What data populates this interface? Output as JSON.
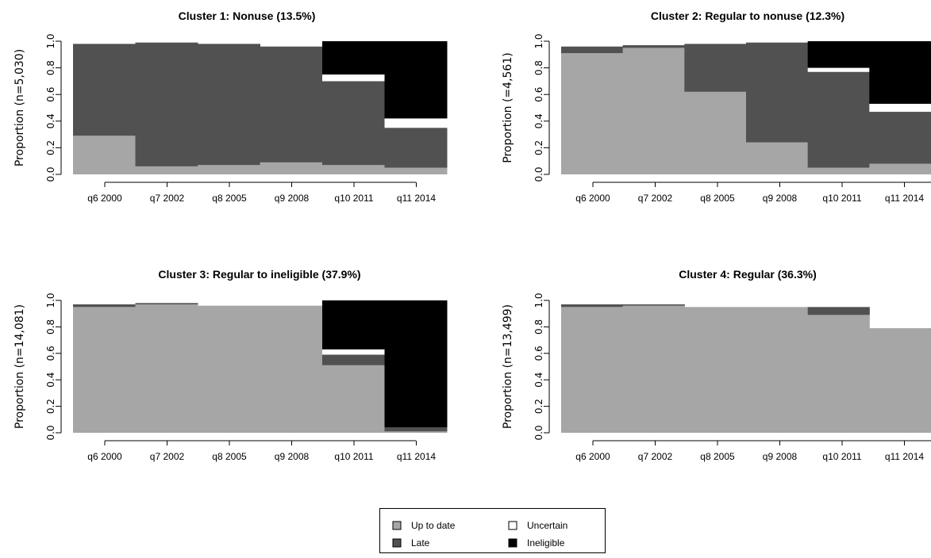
{
  "colors": {
    "Up to date": "#a6a6a6",
    "Late": "#515151",
    "Uncertain": "#ffffff",
    "Ineligible": "#000000"
  },
  "legend": {
    "placement": "bottom-center",
    "entries": [
      "Up to date",
      "Uncertain",
      "Late",
      "Ineligible"
    ]
  },
  "chart_data": [
    {
      "type": "bar",
      "stacked": true,
      "title": "Cluster 1: Nonuse (13.5%)",
      "ylabel": "Proportion (n=5,030)",
      "ylim": [
        0,
        1
      ],
      "yticks": [
        "0.0",
        "0.2",
        "0.4",
        "0.6",
        "0.8",
        "1.0"
      ],
      "categories": [
        "q6 2000",
        "q7 2002",
        "q8 2005",
        "q9 2008",
        "q10 2011",
        "q11 2014"
      ],
      "series": [
        {
          "name": "Up to date",
          "values": [
            0.29,
            0.06,
            0.07,
            0.09,
            0.07,
            0.05
          ]
        },
        {
          "name": "Late",
          "values": [
            0.69,
            0.93,
            0.91,
            0.87,
            0.63,
            0.3
          ]
        },
        {
          "name": "Uncertain",
          "values": [
            0,
            0,
            0,
            0,
            0.05,
            0.07
          ]
        },
        {
          "name": "Ineligible",
          "values": [
            0,
            0,
            0,
            0,
            0.25,
            0.58
          ]
        }
      ]
    },
    {
      "type": "bar",
      "stacked": true,
      "title": "Cluster 2: Regular to nonuse (12.3%)",
      "ylabel": "Proportion (=4,561)",
      "ylim": [
        0,
        1
      ],
      "yticks": [
        "0.0",
        "0.2",
        "0.4",
        "0.6",
        "0.8",
        "1.0"
      ],
      "categories": [
        "q6 2000",
        "q7 2002",
        "q8 2005",
        "q9 2008",
        "q10 2011",
        "q11 2014"
      ],
      "series": [
        {
          "name": "Up to date",
          "values": [
            0.91,
            0.95,
            0.62,
            0.24,
            0.05,
            0.08
          ]
        },
        {
          "name": "Late",
          "values": [
            0.05,
            0.02,
            0.36,
            0.75,
            0.72,
            0.39
          ]
        },
        {
          "name": "Uncertain",
          "values": [
            0,
            0,
            0,
            0,
            0.03,
            0.06
          ]
        },
        {
          "name": "Ineligible",
          "values": [
            0,
            0,
            0,
            0,
            0.2,
            0.47
          ]
        }
      ]
    },
    {
      "type": "bar",
      "stacked": true,
      "title": "Cluster 3: Regular to ineligible (37.9%)",
      "ylabel": "Proportion (n=14,081)",
      "ylim": [
        0,
        1
      ],
      "yticks": [
        "0.0",
        "0.2",
        "0.4",
        "0.6",
        "0.8",
        "1.0"
      ],
      "categories": [
        "q6 2000",
        "q7 2002",
        "q8 2005",
        "q9 2008",
        "q10 2011",
        "q11 2014"
      ],
      "series": [
        {
          "name": "Up to date",
          "values": [
            0.95,
            0.97,
            0.96,
            0.96,
            0.51,
            0.01
          ]
        },
        {
          "name": "Late",
          "values": [
            0.02,
            0.01,
            0.0,
            0.0,
            0.08,
            0.03
          ]
        },
        {
          "name": "Uncertain",
          "values": [
            0,
            0,
            0,
            0,
            0.04,
            0.0
          ]
        },
        {
          "name": "Ineligible",
          "values": [
            0,
            0,
            0,
            0,
            0.37,
            0.96
          ]
        }
      ]
    },
    {
      "type": "bar",
      "stacked": true,
      "title": "Cluster 4: Regular (36.3%)",
      "ylabel": "Proportion (n=13,499)",
      "ylim": [
        0,
        1
      ],
      "yticks": [
        "0.0",
        "0.2",
        "0.4",
        "0.6",
        "0.8",
        "1.0"
      ],
      "categories": [
        "q6 2000",
        "q7 2002",
        "q8 2005",
        "q9 2008",
        "q10 2011",
        "q11 2014"
      ],
      "series": [
        {
          "name": "Up to date",
          "values": [
            0.95,
            0.96,
            0.95,
            0.95,
            0.89,
            0.79
          ]
        },
        {
          "name": "Late",
          "values": [
            0.02,
            0.01,
            0.0,
            0.0,
            0.06,
            0.0
          ]
        },
        {
          "name": "Uncertain",
          "values": [
            0,
            0,
            0,
            0,
            0.0,
            0.0
          ]
        },
        {
          "name": "Ineligible",
          "values": [
            0,
            0,
            0,
            0,
            0.0,
            0.0
          ]
        }
      ]
    }
  ]
}
